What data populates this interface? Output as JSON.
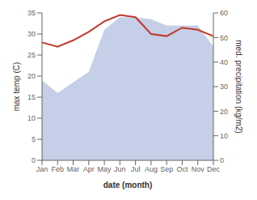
{
  "chart_data": {
    "type": "line",
    "xlabel": "date (month)",
    "ylabel": "max temp (C)",
    "y2label": "med. precipitation (kg/m2)",
    "categories": [
      "Jan",
      "Feb",
      "Mar",
      "Apr",
      "May",
      "Jun",
      "Jul",
      "Aug",
      "Sep",
      "Oct",
      "Nov",
      "Dec"
    ],
    "series": [
      {
        "type": "area",
        "color": "#c5cfe8",
        "values": [
          19.0,
          16.0,
          18.5,
          21.0,
          31.0,
          34.0,
          34.0,
          33.5,
          32.0,
          32.0,
          32.0,
          27.0
        ]
      },
      {
        "type": "line",
        "color": "#c0392b",
        "values": [
          28.0,
          27.0,
          28.5,
          30.5,
          33.0,
          34.5,
          34.0,
          30.0,
          29.5,
          31.5,
          31.0,
          29.5
        ]
      }
    ],
    "ylim": [
      0,
      35
    ],
    "yticks": [
      0,
      5,
      10,
      15,
      20,
      25,
      30,
      35
    ],
    "y2lim": [
      0,
      60
    ],
    "y2ticks": [
      0,
      10,
      20,
      30,
      40,
      50,
      60
    ],
    "grid": false
  }
}
